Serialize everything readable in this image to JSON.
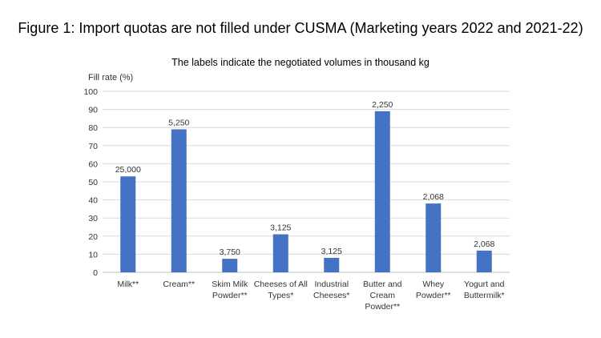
{
  "chart_data": {
    "type": "bar",
    "title": "Figure 1: Import quotas are not filled under CUSMA (Marketing years 2022 and 2021-22)",
    "subtitle": "The labels indicate the negotiated volumes in thousand kg",
    "ylabel": "Fill rate (%)",
    "xlabel": "",
    "ylim": [
      0,
      100
    ],
    "yticks": [
      0,
      10,
      20,
      30,
      40,
      50,
      60,
      70,
      80,
      90,
      100
    ],
    "grid": true,
    "legend": "none",
    "bar_color": "#4472c4",
    "categories": [
      [
        "Milk**"
      ],
      [
        "Cream**"
      ],
      [
        "Skim Milk",
        "Powder**"
      ],
      [
        "Cheeses of All",
        "Types*"
      ],
      [
        "Industrial",
        "Cheeses*"
      ],
      [
        "Butter and",
        "Cream",
        "Powder**"
      ],
      [
        "Whey",
        "Powder**"
      ],
      [
        "Yogurt and",
        "Buttermilk*"
      ]
    ],
    "values": [
      53,
      79,
      7.5,
      21,
      8,
      89,
      38,
      12
    ],
    "data_labels": [
      "25,000",
      "5,250",
      "3,750",
      "3,125",
      "3,125",
      "2,250",
      "2,068",
      "2,068"
    ]
  }
}
